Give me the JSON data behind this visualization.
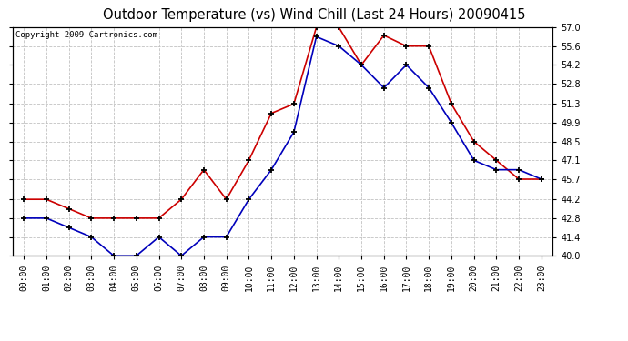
{
  "title": "Outdoor Temperature (vs) Wind Chill (Last 24 Hours) 20090415",
  "copyright": "Copyright 2009 Cartronics.com",
  "x_labels": [
    "00:00",
    "01:00",
    "02:00",
    "03:00",
    "04:00",
    "05:00",
    "06:00",
    "07:00",
    "08:00",
    "09:00",
    "10:00",
    "11:00",
    "12:00",
    "13:00",
    "14:00",
    "15:00",
    "16:00",
    "17:00",
    "18:00",
    "19:00",
    "20:00",
    "21:00",
    "22:00",
    "23:00"
  ],
  "temp_red": [
    44.2,
    44.2,
    43.5,
    42.8,
    42.8,
    42.8,
    42.8,
    44.2,
    46.4,
    44.2,
    47.1,
    50.6,
    51.3,
    57.0,
    57.0,
    54.2,
    56.4,
    55.6,
    55.6,
    51.3,
    48.5,
    47.1,
    45.7,
    45.7
  ],
  "wind_blue": [
    42.8,
    42.8,
    42.1,
    41.4,
    40.0,
    40.0,
    41.4,
    40.0,
    41.4,
    41.4,
    44.2,
    46.4,
    49.2,
    56.3,
    55.6,
    54.2,
    52.5,
    54.2,
    52.5,
    49.9,
    47.1,
    46.4,
    46.4,
    45.7
  ],
  "ylim": [
    40.0,
    57.0
  ],
  "yticks": [
    40.0,
    41.4,
    42.8,
    44.2,
    45.7,
    47.1,
    48.5,
    49.9,
    51.3,
    52.8,
    54.2,
    55.6,
    57.0
  ],
  "red_color": "#cc0000",
  "blue_color": "#0000bb",
  "bg_color": "#ffffff",
  "grid_color": "#bbbbbb",
  "title_fontsize": 10.5,
  "tick_fontsize": 7,
  "copyright_fontsize": 6.5
}
